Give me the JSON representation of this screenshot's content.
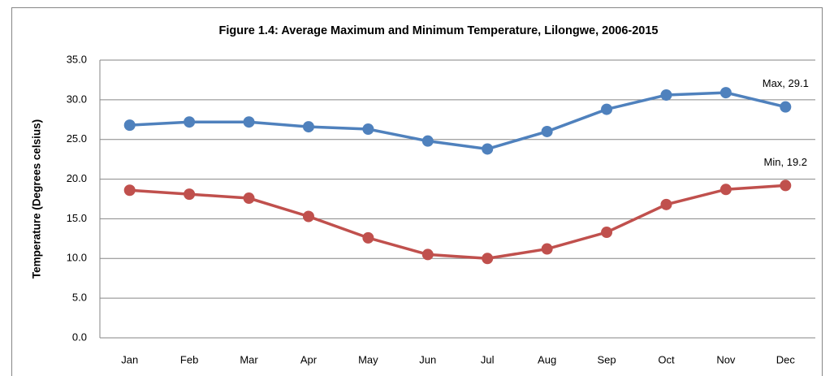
{
  "chart_data": {
    "type": "line",
    "title": "Figure 1.4: Average Maximum and Minimum Temperature, Lilongwe, 2006-2015",
    "y_label": "Temperature (Degrees celsius)",
    "categories": [
      "Jan",
      "Feb",
      "Mar",
      "Apr",
      "May",
      "Jun",
      "Jul",
      "Aug",
      "Sep",
      "Oct",
      "Nov",
      "Dec"
    ],
    "series": [
      {
        "name": "Max",
        "color": "#4f81bd",
        "values": [
          26.8,
          27.2,
          27.2,
          26.6,
          26.3,
          24.8,
          23.8,
          26.0,
          28.8,
          30.6,
          30.9,
          29.1
        ],
        "value_labels": [
          null,
          null,
          null,
          null,
          null,
          null,
          null,
          null,
          null,
          null,
          null,
          "Max, 29.1"
        ]
      },
      {
        "name": "Min",
        "color": "#c0504d",
        "values": [
          18.6,
          18.1,
          17.6,
          15.3,
          12.6,
          10.5,
          10.0,
          11.2,
          13.3,
          16.8,
          18.7,
          19.2
        ],
        "value_labels": [
          null,
          null,
          null,
          null,
          null,
          null,
          null,
          null,
          null,
          null,
          null,
          "Min, 19.2"
        ]
      }
    ],
    "ylim": [
      0,
      35
    ],
    "yticks": [
      {
        "value": 0,
        "label": "0.0"
      },
      {
        "value": 5,
        "label": "5.0"
      },
      {
        "value": 10,
        "label": "10.0"
      },
      {
        "value": 15,
        "label": "15.0"
      },
      {
        "value": 20,
        "label": "20.0"
      },
      {
        "value": 25,
        "label": "25.0"
      },
      {
        "value": 30,
        "label": "30.0"
      },
      {
        "value": 35,
        "label": "35.0"
      }
    ],
    "grid": true
  }
}
